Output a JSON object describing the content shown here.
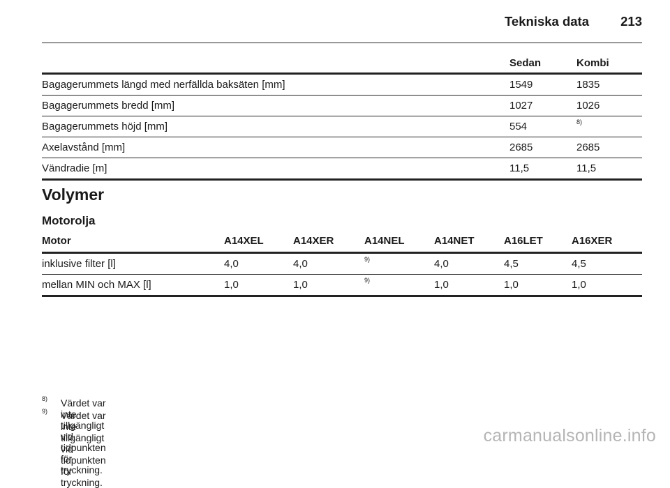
{
  "header": {
    "title": "Tekniska data",
    "page_number": "213"
  },
  "dimensions_table": {
    "columns": [
      "",
      "Sedan",
      "Kombi"
    ],
    "rows": [
      {
        "label": "Bagagerummets längd med nerfällda baksäten [mm]",
        "sedan": "1549",
        "kombi": "1835",
        "kombi_note": ""
      },
      {
        "label": "Bagagerummets bredd [mm]",
        "sedan": "1027",
        "kombi": "1026",
        "kombi_note": ""
      },
      {
        "label": "Bagagerummets höjd [mm]",
        "sedan": "554",
        "kombi": "",
        "kombi_note": "8)"
      },
      {
        "label": "Axelavstånd [mm]",
        "sedan": "2685",
        "kombi": "2685",
        "kombi_note": ""
      },
      {
        "label": "Vändradie [m]",
        "sedan": "11,5",
        "kombi": "11,5",
        "kombi_note": ""
      }
    ]
  },
  "section_heading": "Volymer",
  "subsection_heading": "Motorolja",
  "oil_table": {
    "columns": [
      "Motor",
      "A14XEL",
      "A14XER",
      "A14NEL",
      "A14NET",
      "A16LET",
      "A16XER"
    ],
    "rows": [
      {
        "cells": [
          "inklusive filter [l]",
          "4,0",
          "4,0",
          "",
          "4,0",
          "4,5",
          "4,5"
        ],
        "note_col3": "9)"
      },
      {
        "cells": [
          "mellan MIN och MAX [l]",
          "1,0",
          "1,0",
          "",
          "1,0",
          "1,0",
          "1,0"
        ],
        "note_col3": "9)"
      }
    ]
  },
  "footnotes": [
    {
      "mark": "8)",
      "text": "Värdet var inte tillgängligt vid tidpunkten för tryckning."
    },
    {
      "mark": "9)",
      "text": "Värdet var inte tillgängligt vid tidpunkten för tryckning."
    }
  ],
  "watermark": "carmanualsonline.info"
}
